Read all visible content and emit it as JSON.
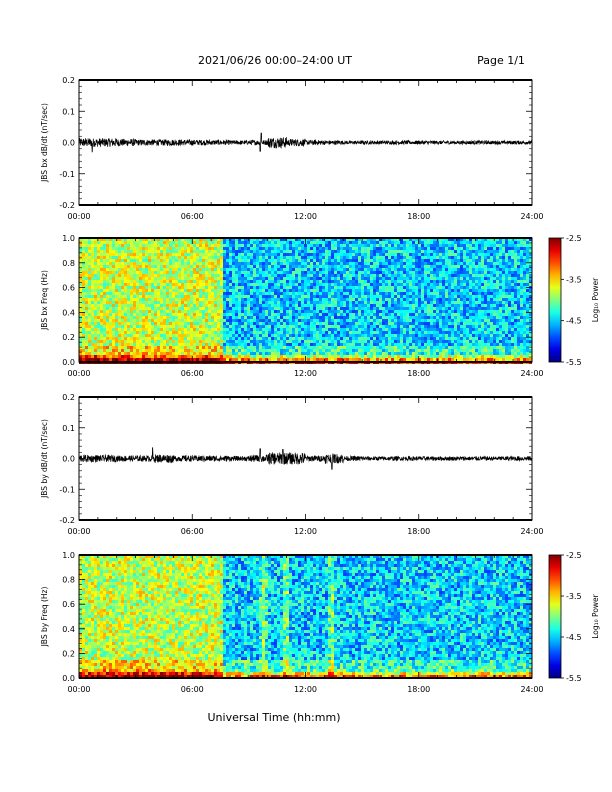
{
  "header": {
    "title": "2021/06/26  00:00–24:00 UT",
    "page": "Page 1/1"
  },
  "xlabel": "Universal Time (hh:mm)",
  "x_ticks": [
    "00:00",
    "06:00",
    "12:00",
    "18:00",
    "24:00"
  ],
  "colorbar": {
    "label": "Log₁₀ Power",
    "ticks": [
      "-2.5",
      "-3.5",
      "-4.5",
      "-5.5"
    ]
  },
  "colors": {
    "trace": "#000000"
  },
  "chart_data": [
    {
      "type": "line",
      "ylabel": "JBS bx dB/dt (nT/sec)",
      "xlim": [
        0,
        24
      ],
      "ylim": [
        -0.2,
        0.2
      ],
      "y_ticks": [
        "0.2",
        "0.1",
        "0.0",
        "-0.1",
        "-0.2"
      ],
      "series": [
        {
          "noise_amplitude_by_hour": [
            0.014,
            0.014,
            0.012,
            0.01,
            0.01,
            0.01,
            0.009,
            0.008,
            0.007,
            0.008,
            0.018,
            0.012,
            0.008,
            0.007,
            0.006,
            0.006,
            0.006,
            0.006,
            0.006,
            0.006,
            0.006,
            0.006,
            0.006,
            0.006
          ],
          "spikes": [
            {
              "t": 9.6,
              "v": -0.028
            },
            {
              "t": 9.65,
              "v": 0.03
            },
            {
              "t": 0.7,
              "v": -0.03
            }
          ]
        }
      ]
    },
    {
      "type": "heatmap",
      "ylabel": "JBS bx Freq (Hz)",
      "xlim": [
        0,
        24
      ],
      "ylim": [
        0,
        1.0
      ],
      "zlim": [
        -5.5,
        -2.5
      ],
      "y_ticks": [
        "1.0",
        "0.8",
        "0.6",
        "0.4",
        "0.2",
        "0.0"
      ],
      "description": "Broadband power ~-3.8 before 07:30 UT, ~-4.5 after; enhanced power near 0 Hz",
      "level_before": -3.8,
      "level_after": -4.5,
      "transition_hour": 7.5
    },
    {
      "type": "line",
      "ylabel": "JBS by dB/dt (nT/sec)",
      "xlim": [
        0,
        24
      ],
      "ylim": [
        -0.2,
        0.2
      ],
      "y_ticks": [
        "0.2",
        "0.1",
        "0.0",
        "-0.1",
        "-0.2"
      ],
      "series": [
        {
          "noise_amplitude_by_hour": [
            0.012,
            0.011,
            0.01,
            0.01,
            0.014,
            0.01,
            0.01,
            0.01,
            0.008,
            0.012,
            0.02,
            0.02,
            0.01,
            0.016,
            0.008,
            0.007,
            0.007,
            0.007,
            0.007,
            0.007,
            0.007,
            0.007,
            0.007,
            0.008
          ],
          "spikes": [
            {
              "t": 3.9,
              "v": 0.035
            },
            {
              "t": 9.6,
              "v": 0.032
            },
            {
              "t": 13.4,
              "v": -0.035
            },
            {
              "t": 10.8,
              "v": 0.03
            }
          ]
        }
      ]
    },
    {
      "type": "heatmap",
      "ylabel": "JBS by Freq (Hz)",
      "xlim": [
        0,
        24
      ],
      "ylim": [
        0,
        1.0
      ],
      "zlim": [
        -5.5,
        -2.5
      ],
      "y_ticks": [
        "1.0",
        "0.8",
        "0.6",
        "0.4",
        "0.2",
        "0.0"
      ],
      "description": "Broadband power ~-3.8 before 07:30 UT, ~-4.5 after; vertical enhancements near 09:40, 10:50, 13:20 UT",
      "level_before": -3.8,
      "level_after": -4.5,
      "transition_hour": 7.5,
      "events_hours": [
        9.7,
        10.9,
        13.3
      ]
    }
  ]
}
